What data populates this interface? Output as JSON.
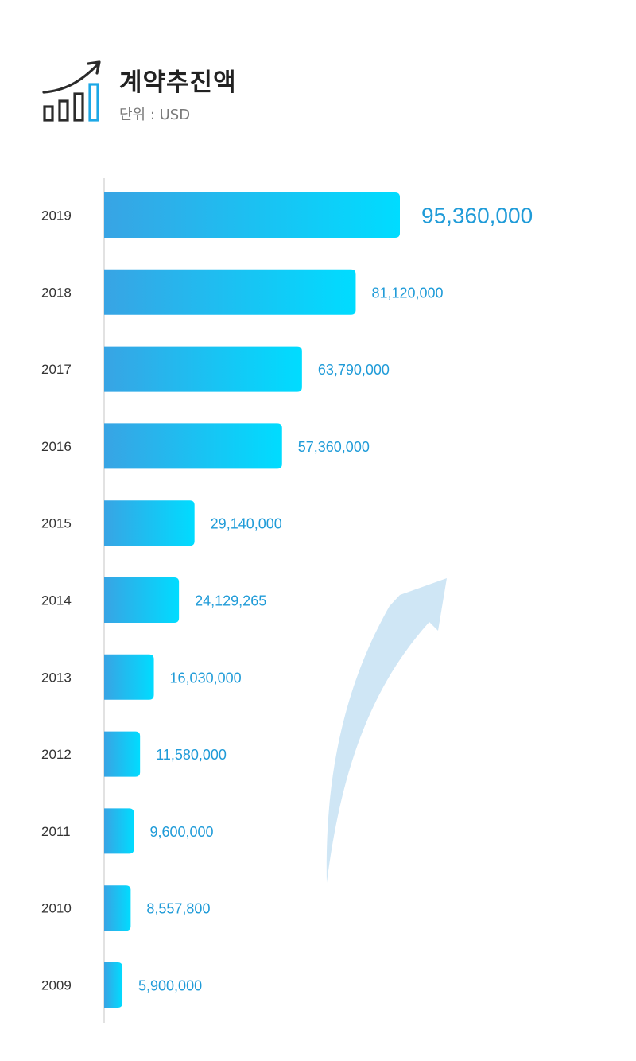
{
  "header": {
    "title": "계약추진액",
    "unit": "단위 : USD"
  },
  "colors": {
    "bar_start": "#38a4e4",
    "bar_end": "#00dcff",
    "value_text": "#1f9bd8",
    "axis": "#cfcfcf",
    "arrow": "#cfe6f5",
    "icon_dark": "#2b2b2b",
    "icon_accent": "#1da8e6"
  },
  "icons": [
    "growth-chart-icon",
    "trend-arrow-icon"
  ],
  "chart_data": {
    "type": "bar",
    "orientation": "horizontal",
    "title": "계약추진액",
    "unit": "단위 : USD",
    "categories": [
      "2019",
      "2018",
      "2017",
      "2016",
      "2015",
      "2014",
      "2013",
      "2012",
      "2011",
      "2010",
      "2009"
    ],
    "values": [
      95360000,
      81120000,
      63790000,
      57360000,
      29140000,
      24129265,
      16030000,
      11580000,
      9600000,
      8557800,
      5900000
    ],
    "value_labels": [
      "95,360,000",
      "81,120,000",
      "63,790,000",
      "57,360,000",
      "29,140,000",
      "24,129,265",
      "16,030,000",
      "11,580,000",
      "9,600,000",
      "8,557,800",
      "5,900,000"
    ],
    "grid": false,
    "legend": "none"
  }
}
